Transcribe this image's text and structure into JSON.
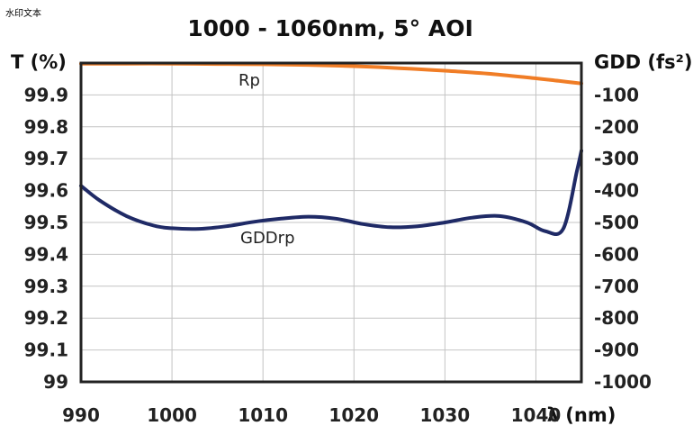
{
  "watermark": "水印文本",
  "chart_data": {
    "type": "line",
    "title": "1000 - 1060nm, 5° AOI",
    "xlabel": "λ (nm)",
    "ylabel_left": "T (%)",
    "ylabel_right": "GDD (fs²)",
    "xlim": [
      990,
      1045
    ],
    "ylim_left": [
      99,
      100
    ],
    "ylim_right": [
      -1000,
      0
    ],
    "xticks": [
      "990",
      "1000",
      "1010",
      "1020",
      "1030",
      "1040"
    ],
    "yticks_left": [
      "99",
      "99.1",
      "99.2",
      "99.3",
      "99.4",
      "99.5",
      "99.6",
      "99.7",
      "99.8",
      "99.9"
    ],
    "yticks_right": [
      "-1000",
      "-900",
      "-800",
      "-700",
      "-600",
      "-500",
      "-400",
      "-300",
      "-200",
      "-100"
    ],
    "grid": true,
    "series": [
      {
        "name": "Rp",
        "axis": "left",
        "color": "#F07D26",
        "x": [
          990,
          995,
          1000,
          1005,
          1010,
          1015,
          1020,
          1025,
          1030,
          1035,
          1040,
          1042.5,
          1045
        ],
        "values": [
          99.998,
          99.998,
          99.998,
          99.997,
          99.996,
          99.994,
          99.99,
          99.984,
          99.976,
          99.966,
          99.952,
          99.944,
          99.936
        ]
      },
      {
        "name": "GDDrp",
        "axis": "right",
        "color": "#1F2A66",
        "x": [
          990,
          992,
          995,
          998,
          1000,
          1003,
          1006,
          1009,
          1012,
          1015,
          1018,
          1021,
          1024,
          1027,
          1030,
          1033,
          1036,
          1039,
          1041,
          1043,
          1044.5,
          1045
        ],
        "values": [
          -385,
          -430,
          -480,
          -510,
          -518,
          -520,
          -512,
          -498,
          -488,
          -482,
          -488,
          -505,
          -515,
          -512,
          -500,
          -485,
          -480,
          -500,
          -527,
          -520,
          -340,
          -275
        ]
      }
    ]
  }
}
